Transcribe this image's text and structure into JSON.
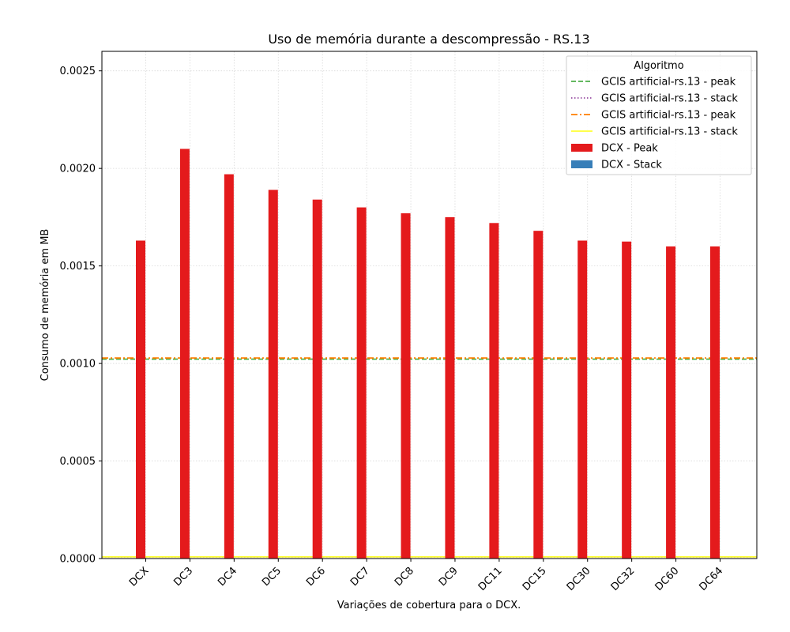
{
  "chart_data": {
    "type": "bar",
    "title": "Uso de memória durante a descompressão -  RS.13",
    "xlabel": "Variações de cobertura para o DCX.",
    "ylabel": "Consumo de memória em MB",
    "ylim": [
      0,
      0.0026
    ],
    "yticks": [
      "0.0000",
      "0.0005",
      "0.0010",
      "0.0015",
      "0.0020",
      "0.0025"
    ],
    "grid": true,
    "legend": {
      "title": "Algoritmo",
      "placement": "top-right",
      "entries": [
        {
          "label": "GCIS artificial-rs.13 - peak",
          "style": "dashed",
          "color": "#4daf4a"
        },
        {
          "label": "GCIS artificial-rs.13 - stack",
          "style": "dotted",
          "color": "#984ea3"
        },
        {
          "label": "GCIS artificial-rs.13 - peak",
          "style": "dashdot",
          "color": "#ff7f00"
        },
        {
          "label": "GCIS artificial-rs.13 - stack",
          "style": "solid",
          "color": "#ffff33"
        },
        {
          "label": "DCX - Peak",
          "style": "bar",
          "color": "#e41a1c"
        },
        {
          "label": "DCX - Stack",
          "style": "bar",
          "color": "#377eb8"
        }
      ]
    },
    "categories": [
      "DCX",
      "DC3",
      "DC4",
      "DC5",
      "DC6",
      "DC7",
      "DC8",
      "DC9",
      "DC11",
      "DC15",
      "DC30",
      "DC32",
      "DC60",
      "DC64"
    ],
    "series": [
      {
        "name": "DCX - Peak",
        "color": "#e41a1c",
        "values": [
          0.00163,
          0.0021,
          0.00197,
          0.00189,
          0.00184,
          0.0018,
          0.00177,
          0.00175,
          0.00172,
          0.00168,
          0.00163,
          0.001625,
          0.0016,
          0.0016
        ]
      },
      {
        "name": "DCX - Stack",
        "color": "#377eb8",
        "values": [
          0,
          0,
          0,
          0,
          0,
          0,
          0,
          0,
          0,
          0,
          0,
          0,
          0,
          0
        ]
      }
    ],
    "reference_lines": [
      {
        "label": "GCIS artificial-rs.13 - peak",
        "value": 0.001022,
        "style": "dashed",
        "color": "#4daf4a"
      },
      {
        "label": "GCIS artificial-rs.13 - stack",
        "value": 8.5e-06,
        "style": "dotted",
        "color": "#984ea3"
      },
      {
        "label": "GCIS artificial-rs.13 - peak",
        "value": 0.001028,
        "style": "dashdot",
        "color": "#ff7f00"
      },
      {
        "label": "GCIS artificial-rs.13 - stack",
        "value": 8.5e-06,
        "style": "solid",
        "color": "#ffff33"
      }
    ]
  }
}
